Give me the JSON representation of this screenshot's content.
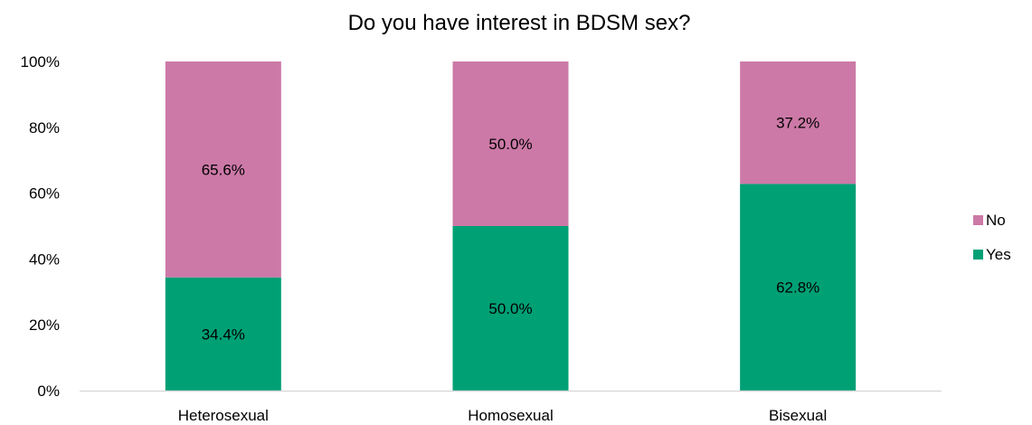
{
  "chart_data": {
    "type": "bar",
    "stacked": true,
    "title": "Do you have interest in BDSM sex?",
    "xlabel": "",
    "ylabel": "",
    "categories": [
      "Heterosexual",
      "Homosexual",
      "Bisexual"
    ],
    "series": [
      {
        "name": "Yes",
        "values": [
          34.4,
          50.0,
          62.8
        ],
        "labels": [
          "34.4%",
          "50.0%",
          "62.8%"
        ],
        "color": "#00a075"
      },
      {
        "name": "No",
        "values": [
          65.6,
          50.0,
          37.2
        ],
        "labels": [
          "65.6%",
          "50.0%",
          "37.2%"
        ],
        "color": "#cc79a7"
      }
    ],
    "ylim": [
      0,
      100
    ],
    "yticks": [
      0,
      20,
      40,
      60,
      80,
      100
    ],
    "ytick_labels": [
      "0%",
      "20%",
      "40%",
      "60%",
      "80%",
      "100%"
    ],
    "grid": false,
    "legend": {
      "position": "right",
      "order": [
        "No",
        "Yes"
      ]
    },
    "axis_color": "#d9d9d9"
  }
}
